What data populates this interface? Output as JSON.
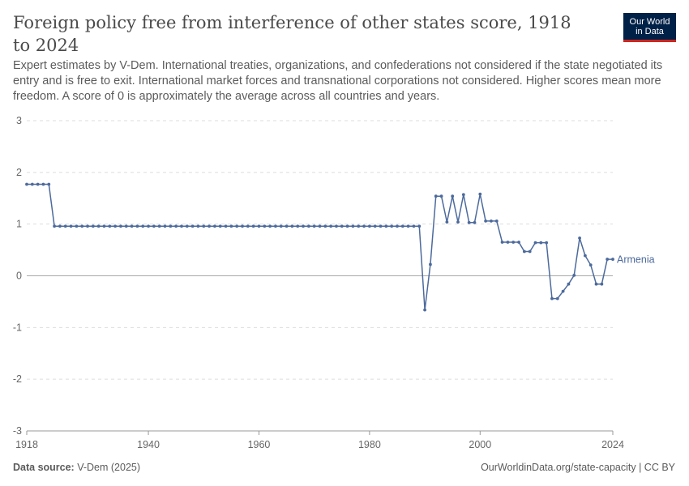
{
  "header": {
    "title": "Foreign policy free from interference of other states score, 1918 to 2024",
    "subtitle": "Expert estimates by V-Dem. International treaties, organizations, and confederations not considered if the state negotiated its entry and is free to exit. International market forces and transnational corporations not considered. Higher scores mean more freedom. A score of 0 is approximately the average across all countries and years.",
    "logo_line1": "Our World",
    "logo_line2": "in Data"
  },
  "footer": {
    "source_label": "Data source:",
    "source_value": "V-Dem (2025)",
    "link": "OurWorldinData.org/state-capacity | CC BY"
  },
  "colors": {
    "series": "#4c6a9c",
    "grid": "#dddddd",
    "zero_line": "#a8a8a8",
    "axis_text": "#666666"
  },
  "chart_data": {
    "type": "line",
    "title": "Foreign policy free from interference of other states score, 1918 to 2024",
    "xlabel": "",
    "ylabel": "",
    "xlim": [
      1918,
      2024
    ],
    "ylim": [
      -3,
      3
    ],
    "x_ticks": [
      1918,
      1940,
      1960,
      1980,
      2000,
      2024
    ],
    "y_ticks": [
      -3,
      -2,
      -1,
      0,
      1,
      2,
      3
    ],
    "grid": true,
    "legend": "end-label",
    "series": [
      {
        "name": "Armenia",
        "x": [
          1918,
          1919,
          1920,
          1921,
          1922,
          1923,
          1924,
          1925,
          1926,
          1927,
          1928,
          1929,
          1930,
          1931,
          1932,
          1933,
          1934,
          1935,
          1936,
          1937,
          1938,
          1939,
          1940,
          1941,
          1942,
          1943,
          1944,
          1945,
          1946,
          1947,
          1948,
          1949,
          1950,
          1951,
          1952,
          1953,
          1954,
          1955,
          1956,
          1957,
          1958,
          1959,
          1960,
          1961,
          1962,
          1963,
          1964,
          1965,
          1966,
          1967,
          1968,
          1969,
          1970,
          1971,
          1972,
          1973,
          1974,
          1975,
          1976,
          1977,
          1978,
          1979,
          1980,
          1981,
          1982,
          1983,
          1984,
          1985,
          1986,
          1987,
          1988,
          1989,
          1990,
          1991,
          1992,
          1993,
          1994,
          1995,
          1996,
          1997,
          1998,
          1999,
          2000,
          2001,
          2002,
          2003,
          2004,
          2005,
          2006,
          2007,
          2008,
          2009,
          2010,
          2011,
          2012,
          2013,
          2014,
          2015,
          2016,
          2017,
          2018,
          2019,
          2020,
          2021,
          2022,
          2023,
          2024
        ],
        "values": [
          1.77,
          1.77,
          1.77,
          1.77,
          1.77,
          0.96,
          0.96,
          0.96,
          0.96,
          0.96,
          0.96,
          0.96,
          0.96,
          0.96,
          0.96,
          0.96,
          0.96,
          0.96,
          0.96,
          0.96,
          0.96,
          0.96,
          0.96,
          0.96,
          0.96,
          0.96,
          0.96,
          0.96,
          0.96,
          0.96,
          0.96,
          0.96,
          0.96,
          0.96,
          0.96,
          0.96,
          0.96,
          0.96,
          0.96,
          0.96,
          0.96,
          0.96,
          0.96,
          0.96,
          0.96,
          0.96,
          0.96,
          0.96,
          0.96,
          0.96,
          0.96,
          0.96,
          0.96,
          0.96,
          0.96,
          0.96,
          0.96,
          0.96,
          0.96,
          0.96,
          0.96,
          0.96,
          0.96,
          0.96,
          0.96,
          0.96,
          0.96,
          0.96,
          0.96,
          0.96,
          0.96,
          0.96,
          -0.66,
          0.22,
          1.54,
          1.54,
          1.04,
          1.54,
          1.04,
          1.57,
          1.03,
          1.03,
          1.58,
          1.06,
          1.06,
          1.06,
          0.65,
          0.65,
          0.65,
          0.65,
          0.47,
          0.47,
          0.64,
          0.64,
          0.64,
          -0.44,
          -0.44,
          -0.3,
          -0.16,
          0.01,
          0.73,
          0.39,
          0.21,
          -0.16,
          -0.16,
          0.32,
          0.32
        ]
      }
    ]
  }
}
